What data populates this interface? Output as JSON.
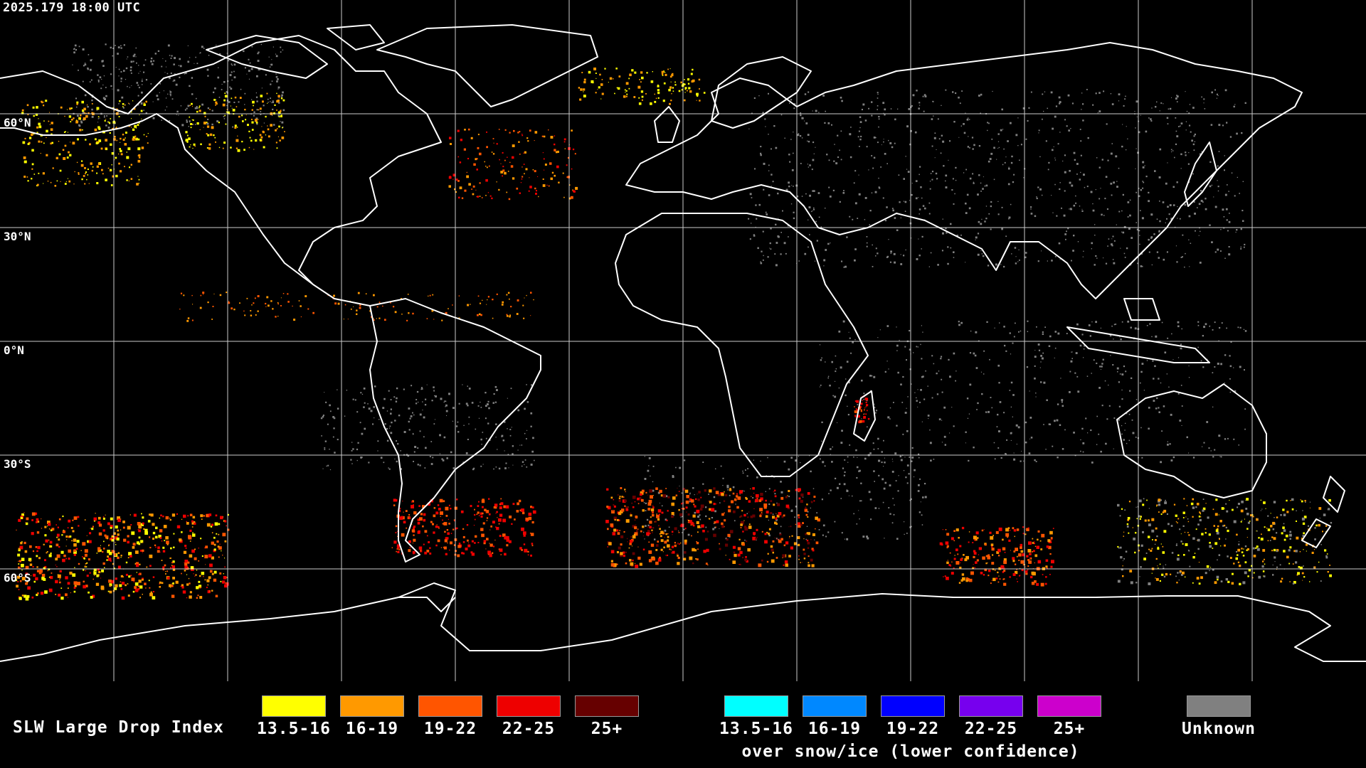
{
  "header": {
    "timestamp": "2025.179 18:00 UTC"
  },
  "map": {
    "lat_labels": [
      "60°N",
      "30°N",
      "0°N",
      "30°S",
      "60°S"
    ],
    "colors": {
      "background": "#000000",
      "coast": "#ffffff",
      "grid": "#ffffff"
    }
  },
  "legend": {
    "title": "SLW Large Drop Index",
    "liquid": [
      {
        "label": "13.5-16",
        "color": "#ffff00"
      },
      {
        "label": "16-19",
        "color": "#ff9900"
      },
      {
        "label": "19-22",
        "color": "#ff5500"
      },
      {
        "label": "22-25",
        "color": "#ee0000"
      },
      {
        "label": "25+",
        "color": "#660000"
      }
    ],
    "snow_ice": [
      {
        "label": "13.5-16",
        "color": "#00ffff"
      },
      {
        "label": "16-19",
        "color": "#0088ff"
      },
      {
        "label": "19-22",
        "color": "#0000ff"
      },
      {
        "label": "22-25",
        "color": "#7700ee"
      },
      {
        "label": "25+",
        "color": "#cc00cc"
      }
    ],
    "snow_ice_caption": "over snow/ice (lower confidence)",
    "unknown": {
      "label": "Unknown",
      "color": "#808080"
    }
  }
}
